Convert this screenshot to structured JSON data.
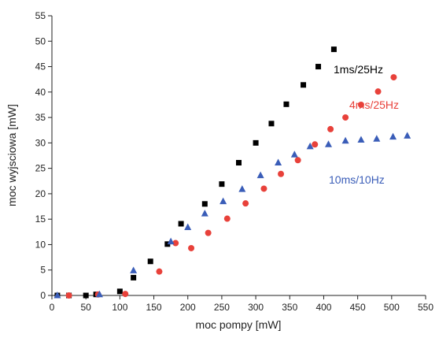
{
  "chart_data": {
    "type": "scatter",
    "xlabel": "moc pompy [mW]",
    "ylabel": "moc wyjsciowa [mW]",
    "xlim": [
      0,
      550
    ],
    "ylim": [
      0,
      55
    ],
    "xticks": [
      0,
      50,
      100,
      150,
      200,
      250,
      300,
      350,
      400,
      450,
      500,
      550
    ],
    "yticks": [
      0,
      5,
      10,
      15,
      20,
      25,
      30,
      35,
      40,
      45,
      50,
      55
    ],
    "grid": false,
    "series": [
      {
        "name": "1ms/25Hz",
        "marker": "square",
        "color": "#000000",
        "x": [
          8,
          25,
          50,
          65,
          100,
          120,
          145,
          170,
          190,
          225,
          250,
          275,
          300,
          323,
          345,
          370,
          392,
          415
        ],
        "y": [
          0,
          0,
          0,
          0.2,
          0.8,
          3.5,
          6.7,
          10.1,
          14.1,
          18.0,
          21.9,
          26.1,
          30.0,
          33.8,
          37.6,
          41.4,
          45.0,
          48.4
        ]
      },
      {
        "name": "4ms/25Hz",
        "marker": "circle",
        "color": "#e8413a",
        "x": [
          25,
          68,
          108,
          158,
          182,
          205,
          230,
          258,
          285,
          312,
          337,
          362,
          387,
          410,
          432,
          455,
          480,
          503
        ],
        "y": [
          0,
          0.2,
          0.3,
          4.7,
          10.3,
          9.3,
          12.3,
          15.1,
          18.1,
          21.0,
          23.9,
          26.6,
          29.7,
          32.7,
          35.0,
          37.5,
          40.1,
          42.9
        ]
      },
      {
        "name": "10ms/10Hz",
        "marker": "triangle",
        "color": "#3a5db8",
        "x": [
          8,
          70,
          120,
          175,
          200,
          225,
          252,
          280,
          307,
          333,
          357,
          380,
          407,
          432,
          455,
          478,
          502,
          523
        ],
        "y": [
          0,
          0.2,
          4.9,
          10.6,
          13.4,
          16.1,
          18.5,
          20.9,
          23.6,
          26.1,
          27.7,
          29.3,
          29.7,
          30.4,
          30.6,
          30.8,
          31.2,
          31.4
        ]
      }
    ]
  }
}
